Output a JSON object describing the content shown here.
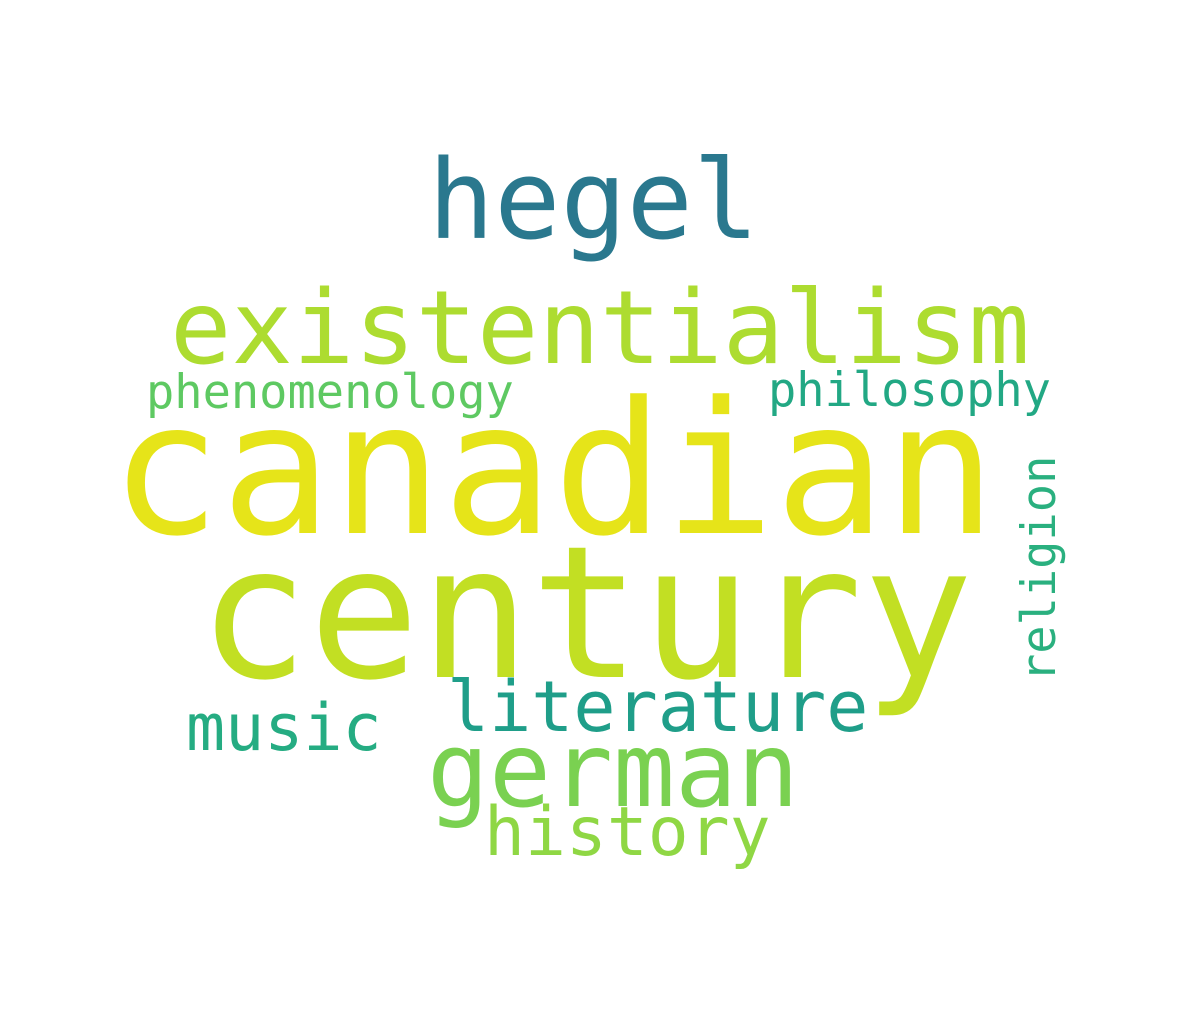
{
  "words": [
    {
      "text": "canadian",
      "color": "#e6e419"
    },
    {
      "text": "century",
      "color": "#c2df23"
    },
    {
      "text": "existentialism",
      "color": "#addc30"
    },
    {
      "text": "hegel",
      "color": "#2a788e"
    },
    {
      "text": "german",
      "color": "#7ad151"
    },
    {
      "text": "literature",
      "color": "#1f9e89"
    },
    {
      "text": "history",
      "color": "#8fd744"
    },
    {
      "text": "music",
      "color": "#25ac82"
    },
    {
      "text": "phenomenology",
      "color": "#5ec962"
    },
    {
      "text": "philosophy",
      "color": "#22a884"
    },
    {
      "text": "religion",
      "color": "#2ab07f"
    }
  ]
}
